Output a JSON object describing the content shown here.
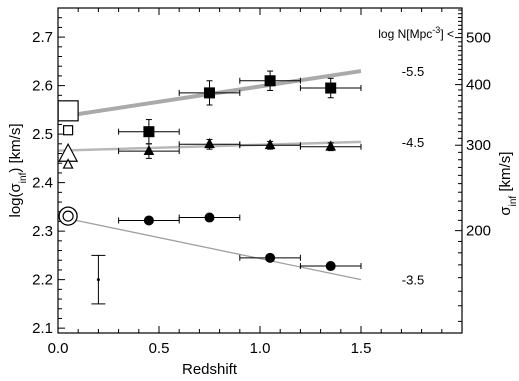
{
  "chart_data": {
    "type": "scatter",
    "xlabel": "Redshift",
    "ylabel_left_parts": [
      "log(σ",
      "inf",
      ") [km/s]"
    ],
    "ylabel_right_parts": [
      "σ",
      "inf",
      " [km/s]"
    ],
    "right_header_parts": [
      "log N[Mpc",
      "-3",
      "] <"
    ],
    "xlim": [
      0.0,
      2.0
    ],
    "ylim": [
      2.09,
      2.76
    ],
    "x_ticks": [
      {
        "v": 0.0,
        "label": "0.0"
      },
      {
        "v": 0.5,
        "label": "0.5"
      },
      {
        "v": 1.0,
        "label": "1.0"
      },
      {
        "v": 1.5,
        "label": "1.5"
      }
    ],
    "y_ticks": [
      {
        "v": 2.1,
        "label": "2.1"
      },
      {
        "v": 2.2,
        "label": "2.2"
      },
      {
        "v": 2.3,
        "label": "2.3"
      },
      {
        "v": 2.4,
        "label": "2.4"
      },
      {
        "v": 2.5,
        "label": "2.5"
      },
      {
        "v": 2.6,
        "label": "2.6"
      },
      {
        "v": 2.7,
        "label": "2.7"
      }
    ],
    "right_ticks": [
      {
        "v": 200,
        "label": "200"
      },
      {
        "v": 300,
        "label": "300"
      },
      {
        "v": 400,
        "label": "400"
      },
      {
        "v": 500,
        "label": "500"
      }
    ],
    "series": [
      {
        "name": "-5.5",
        "marker": "square",
        "points": [
          {
            "x": 0.45,
            "y": 2.505,
            "xerr": 0.15,
            "yerr": 0.025
          },
          {
            "x": 0.75,
            "y": 2.585,
            "xerr": 0.15,
            "yerr": 0.025
          },
          {
            "x": 1.05,
            "y": 2.61,
            "xerr": 0.15,
            "yerr": 0.02
          },
          {
            "x": 1.35,
            "y": 2.595,
            "xerr": 0.15,
            "yerr": 0.02
          }
        ],
        "fit": [
          [
            0.0,
            2.535
          ],
          [
            1.5,
            2.63
          ]
        ],
        "z0": [
          {
            "x": 0.05,
            "y": 2.548,
            "size": "large"
          },
          {
            "x": 0.05,
            "y": 2.508,
            "size": "small"
          }
        ]
      },
      {
        "name": "-4.5",
        "marker": "triangle",
        "points": [
          {
            "x": 0.45,
            "y": 2.465,
            "xerr": 0.15,
            "yerr": 0.015
          },
          {
            "x": 0.75,
            "y": 2.479,
            "xerr": 0.15,
            "yerr": 0.01
          },
          {
            "x": 1.05,
            "y": 2.477,
            "xerr": 0.15,
            "yerr": 0.008
          },
          {
            "x": 1.35,
            "y": 2.474,
            "xerr": 0.15,
            "yerr": 0.008
          }
        ],
        "fit": [
          [
            0.0,
            2.466
          ],
          [
            1.5,
            2.484
          ]
        ],
        "z0": [
          {
            "x": 0.05,
            "y": 2.458,
            "size": "large"
          },
          {
            "x": 0.05,
            "y": 2.437,
            "size": "small"
          }
        ]
      },
      {
        "name": "-3.5",
        "marker": "circle",
        "points": [
          {
            "x": 0.45,
            "y": 2.322,
            "xerr": 0.15,
            "yerr": 0.006
          },
          {
            "x": 0.75,
            "y": 2.328,
            "xerr": 0.15,
            "yerr": 0.006
          },
          {
            "x": 1.05,
            "y": 2.245,
            "xerr": 0.15,
            "yerr": 0.006
          },
          {
            "x": 1.35,
            "y": 2.228,
            "xerr": 0.15,
            "yerr": 0.006
          }
        ],
        "fit": [
          [
            0.0,
            2.33
          ],
          [
            1.5,
            2.2
          ]
        ],
        "z0": [
          {
            "x": 0.05,
            "y": 2.331,
            "size": "large"
          }
        ]
      }
    ],
    "typical_error": {
      "x": 0.2,
      "y": 2.2,
      "yerr": 0.05
    },
    "colors": {
      "fit_square": "#aaaaaa",
      "fit_triangle": "#b8b8b8",
      "fit_circle": "#a0a0a0",
      "ink": "#000000"
    }
  }
}
